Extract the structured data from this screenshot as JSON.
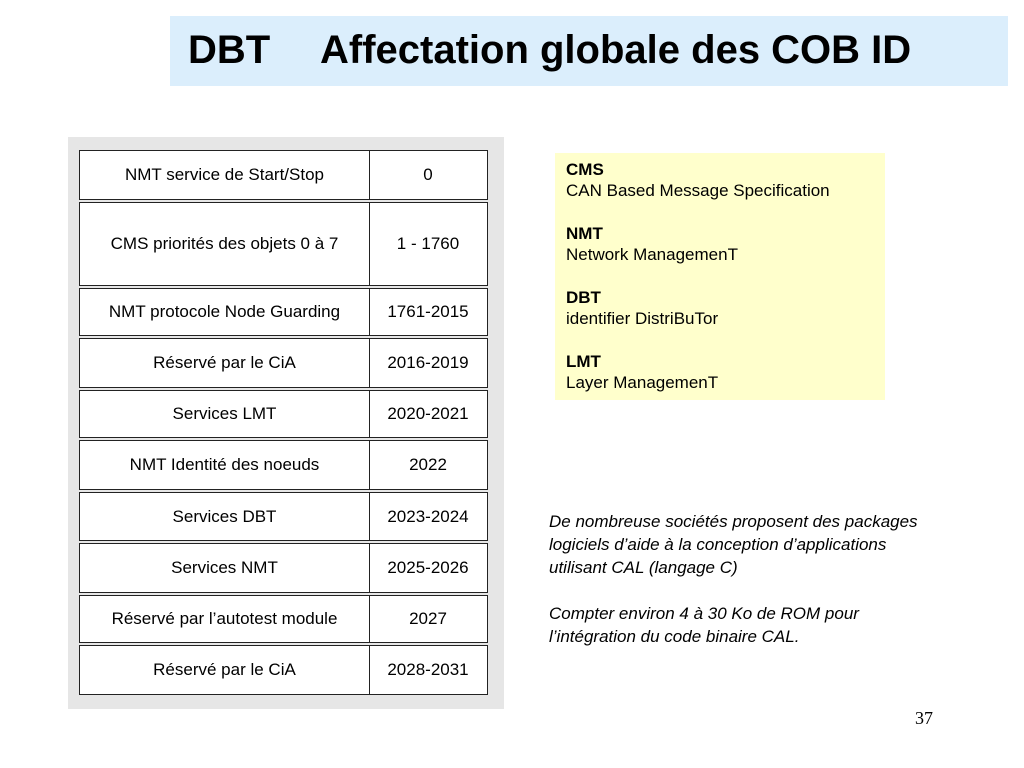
{
  "title": {
    "prefix": "DBT",
    "main": "Affectation globale des COB ID"
  },
  "table": {
    "rows": [
      {
        "label": "NMT service de Start/Stop",
        "value": "0"
      },
      {
        "label": "CMS priorités des objets 0 à 7",
        "value": "1 - 1760"
      },
      {
        "label": "NMT protocole Node Guarding",
        "value": "1761-2015"
      },
      {
        "label": "Réservé par le CiA",
        "value": "2016-2019"
      },
      {
        "label": "Services LMT",
        "value": "2020-2021"
      },
      {
        "label": "NMT Identité des noeuds",
        "value": "2022"
      },
      {
        "label": "Services DBT",
        "value": "2023-2024"
      },
      {
        "label": "Services NMT",
        "value": "2025-2026"
      },
      {
        "label": "Réservé par l’autotest module",
        "value": "2027"
      },
      {
        "label": "Réservé par le CiA",
        "value": "2028-2031"
      }
    ]
  },
  "legend": {
    "items": [
      {
        "term": "CMS",
        "definition": "CAN Based Message Specification"
      },
      {
        "term": "NMT",
        "definition": "Network ManagemenT"
      },
      {
        "term": "DBT",
        "definition": "identifier DistriBuTor"
      },
      {
        "term": "LMT",
        "definition": "Layer ManagemenT"
      }
    ]
  },
  "notes": {
    "paragraph1": [
      "De nombreuse sociétés proposent des packages",
      "logiciels d’aide à la conception d’applications",
      "utilisant CAL (langage C)"
    ],
    "paragraph2": [
      "Compter environ 4 à 30 Ko de ROM pour",
      "l’intégration du code binaire CAL."
    ]
  },
  "page_number": "37",
  "colors": {
    "title_background": "#dbeefc",
    "table_panel_background": "#e6e6e6",
    "legend_background": "#ffffcc"
  }
}
